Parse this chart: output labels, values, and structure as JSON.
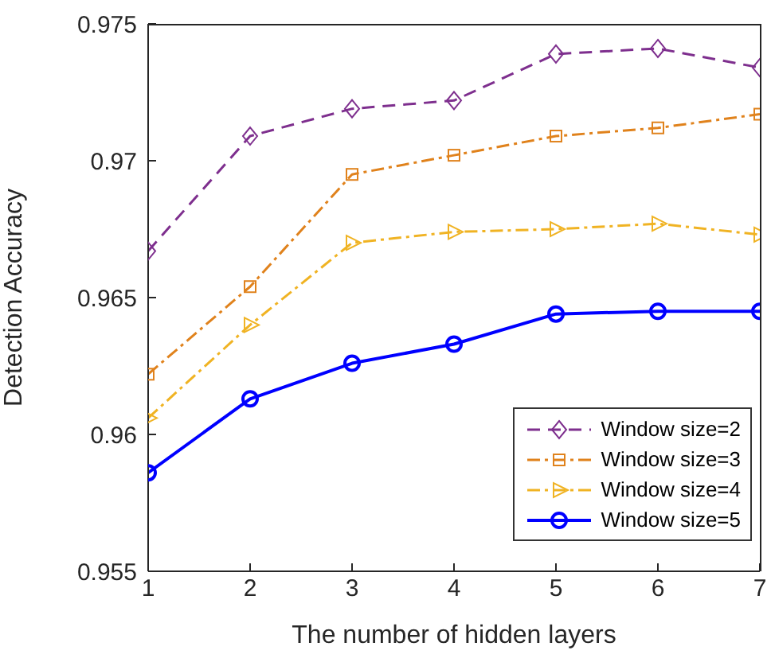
{
  "chart_data": {
    "type": "line",
    "xlabel": "The number of hidden layers",
    "ylabel": "Detection Accuracy",
    "x": [
      1,
      2,
      3,
      4,
      5,
      6,
      7
    ],
    "xlim": [
      1,
      7
    ],
    "xticks": [
      1,
      2,
      3,
      4,
      5,
      6,
      7
    ],
    "ylim": [
      0.955,
      0.975
    ],
    "yticks": [
      0.955,
      0.96,
      0.965,
      0.97,
      0.975
    ],
    "grid": false,
    "legend": "bottom right",
    "series": [
      {
        "name": "Window size=2",
        "color": "#7e2f8e",
        "marker": "diamond",
        "line_style": "dashed",
        "values": [
          0.9667,
          0.9709,
          0.9719,
          0.9722,
          0.9739,
          0.9741,
          0.9734
        ]
      },
      {
        "name": "Window size=3",
        "color": "#e0821c",
        "marker": "square",
        "line_style": "dashdot",
        "values": [
          0.9622,
          0.9654,
          0.9695,
          0.9702,
          0.9709,
          0.9712,
          0.9717
        ]
      },
      {
        "name": "Window size=4",
        "color": "#f0b323",
        "marker": "triangle",
        "line_style": "dashdot",
        "values": [
          0.9606,
          0.964,
          0.967,
          0.9674,
          0.9675,
          0.9677,
          0.9673
        ]
      },
      {
        "name": "Window size=5",
        "color": "#0000ff",
        "marker": "circle",
        "line_style": "solid",
        "values": [
          0.9586,
          0.9613,
          0.9626,
          0.9633,
          0.9644,
          0.9645,
          0.9645
        ]
      }
    ]
  }
}
